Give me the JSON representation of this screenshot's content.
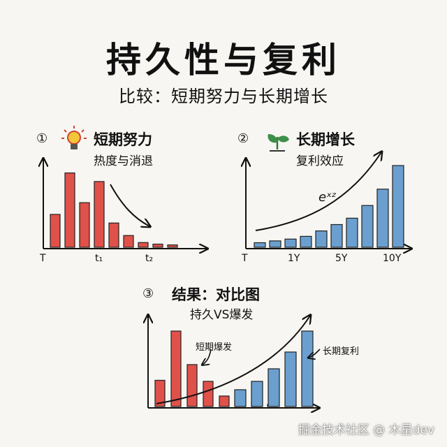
{
  "title": "持久性与复利",
  "subtitle": "比较：短期努力与长期增长",
  "panels": [
    {
      "number": "①",
      "icon": "lightbulb-icon",
      "heading": "短期努力",
      "caption": "热度与消退",
      "ticks": [
        "T",
        "t₁",
        "t₂"
      ],
      "bars": [
        0.42,
        0.95,
        0.57,
        0.84,
        0.31,
        0.15,
        0.06,
        0.04,
        0.03
      ],
      "bar_color": "#e0514a"
    },
    {
      "number": "②",
      "icon": "sprout-icon",
      "heading": "长期增长",
      "caption": "复利效应",
      "ticks": [
        "T",
        "1Y",
        "5Y",
        "10Y"
      ],
      "curve_label": "eˣᶻ",
      "bars": [
        0.05,
        0.07,
        0.09,
        0.12,
        0.18,
        0.25,
        0.32,
        0.46,
        0.64,
        0.9
      ],
      "bar_color": "#6b9fcf"
    },
    {
      "number": "③",
      "heading": "结果：对比图",
      "caption": "持久VS爆发",
      "note_short": "短期爆发",
      "note_long": "长期复利",
      "red_bars": [
        0.25,
        0.72,
        0.4,
        0.24,
        0.1,
        0.05,
        0.03,
        0.02
      ],
      "blue_bars": [
        0.16,
        0.24,
        0.36,
        0.52,
        0.72
      ]
    }
  ],
  "colors": {
    "red": "#e0514a",
    "blue": "#6b9fcf",
    "ink": "#111111"
  },
  "watermark": "掘金技术社区 @ 木星dev"
}
